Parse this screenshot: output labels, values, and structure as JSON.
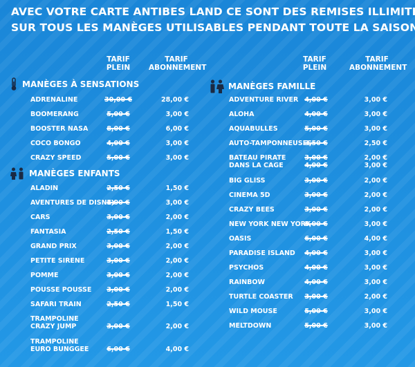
{
  "header": {
    "line1": "AVEC VOTRE CARTE ANTIBES LAND CE SONT DES REMISES ILLIMITÉES",
    "line2": "SUR TOUS LES MANÈGES UTILISABLES PENDANT TOUTE LA SAISON"
  },
  "columns": {
    "plein": [
      "TARIF",
      "PLEIN"
    ],
    "abonnement": [
      "TARIF",
      "ABONNEMENT"
    ]
  },
  "sections": {
    "sensations": {
      "title": "MANÈGES À SENSATIONS",
      "icon": "thermometer-icon",
      "rows": [
        {
          "name": [
            "ADRENALINE"
          ],
          "plein": "30,00 €",
          "abo": "28,00 €"
        },
        {
          "name": [
            "BOOMERANG"
          ],
          "plein": "5,00 €",
          "abo": "3,00 €"
        },
        {
          "name": [
            "BOOSTER NASA"
          ],
          "plein": "8,00 €",
          "abo": "6,00 €"
        },
        {
          "name": [
            "COCO BONGO"
          ],
          "plein": "4,00 €",
          "abo": "3,00 €"
        },
        {
          "name": [
            "CRAZY SPEED"
          ],
          "plein": "5,00 €",
          "abo": "3,00 €"
        }
      ]
    },
    "enfants": {
      "title": "MANÈGES ENFANTS",
      "icon": "children-icon",
      "rows": [
        {
          "name": [
            "ALADIN"
          ],
          "plein": "2,50 €",
          "abo": "1,50 €"
        },
        {
          "name": [
            "AVENTURES DE DISNEY"
          ],
          "plein": "4,00 €",
          "abo": "3,00 €"
        },
        {
          "name": [
            "CARS"
          ],
          "plein": "3,00 €",
          "abo": "2,00 €"
        },
        {
          "name": [
            "FANTASIA"
          ],
          "plein": "2,50 €",
          "abo": "1,50 €"
        },
        {
          "name": [
            "GRAND PRIX"
          ],
          "plein": "3,00 €",
          "abo": "2,00 €"
        },
        {
          "name": [
            "PETITE SIRENE"
          ],
          "plein": "3,00 €",
          "abo": "2,00 €"
        },
        {
          "name": [
            "POMME"
          ],
          "plein": "3,00 €",
          "abo": "2,00 €"
        },
        {
          "name": [
            "POUSSE POUSSE"
          ],
          "plein": "3,00 €",
          "abo": "2,00 €"
        },
        {
          "name": [
            "SAFARI TRAIN"
          ],
          "plein": "2,50 €",
          "abo": "1,50 €"
        },
        {
          "name": [
            "TRAMPOLINE",
            "CRAZY JUMP"
          ],
          "plein": "3,00 €",
          "abo": "2,00 €"
        },
        {
          "name": [
            "TRAMPOLINE",
            "EURO BUNGGEE"
          ],
          "plein": "6,00 €",
          "abo": "4,00 €"
        }
      ]
    },
    "famille": {
      "title": "MANÈGES FAMILLE",
      "icon": "family-icon",
      "rows": [
        {
          "name": [
            "ADVENTURE RIVER"
          ],
          "plein": "4,00 €",
          "abo": "3,00 €"
        },
        {
          "name": [
            "ALOHA"
          ],
          "plein": "4,00 €",
          "abo": "3,00 €"
        },
        {
          "name": [
            "AQUABULLES"
          ],
          "plein": "5,00 €",
          "abo": "3,00 €"
        },
        {
          "name": [
            "AUTO-TAMPONNEUSES"
          ],
          "plein": "3,50 €",
          "abo": "2,50 €"
        },
        {
          "name": [
            "BATEAU PIRATE",
            "DANS LA CAGE"
          ],
          "plein": "3,00 €",
          "abo": "2,00 €",
          "plein2": "4,00 €",
          "abo2": "3,00 €"
        },
        {
          "name": [
            "BIG GLISS"
          ],
          "plein": "3,00 €",
          "abo": "2,00 €"
        },
        {
          "name": [
            "CINEMA 5D"
          ],
          "plein": "3,00 €",
          "abo": "2,00 €"
        },
        {
          "name": [
            "CRAZY BEES"
          ],
          "plein": "3,00 €",
          "abo": "2,00 €"
        },
        {
          "name": [
            "NEW YORK NEW YORK"
          ],
          "plein": "5,00 €",
          "abo": "3,00 €"
        },
        {
          "name": [
            "OASIS"
          ],
          "plein": "6,00 €",
          "abo": "4,00 €"
        },
        {
          "name": [
            "PARADISE ISLAND"
          ],
          "plein": "4,00 €",
          "abo": "3,00 €"
        },
        {
          "name": [
            "PSYCHOS"
          ],
          "plein": "4,00 €",
          "abo": "3,00 €"
        },
        {
          "name": [
            "RAINBOW"
          ],
          "plein": "4,00 €",
          "abo": "3,00 €"
        },
        {
          "name": [
            "TURTLE COASTER"
          ],
          "plein": "3,00 €",
          "abo": "2,00 €"
        },
        {
          "name": [
            "WILD MOUSE"
          ],
          "plein": "5,00 €",
          "abo": "3,00 €"
        },
        {
          "name": [
            "MELTDOWN"
          ],
          "plein": "5,00 €",
          "abo": "3,00 €"
        }
      ]
    }
  }
}
